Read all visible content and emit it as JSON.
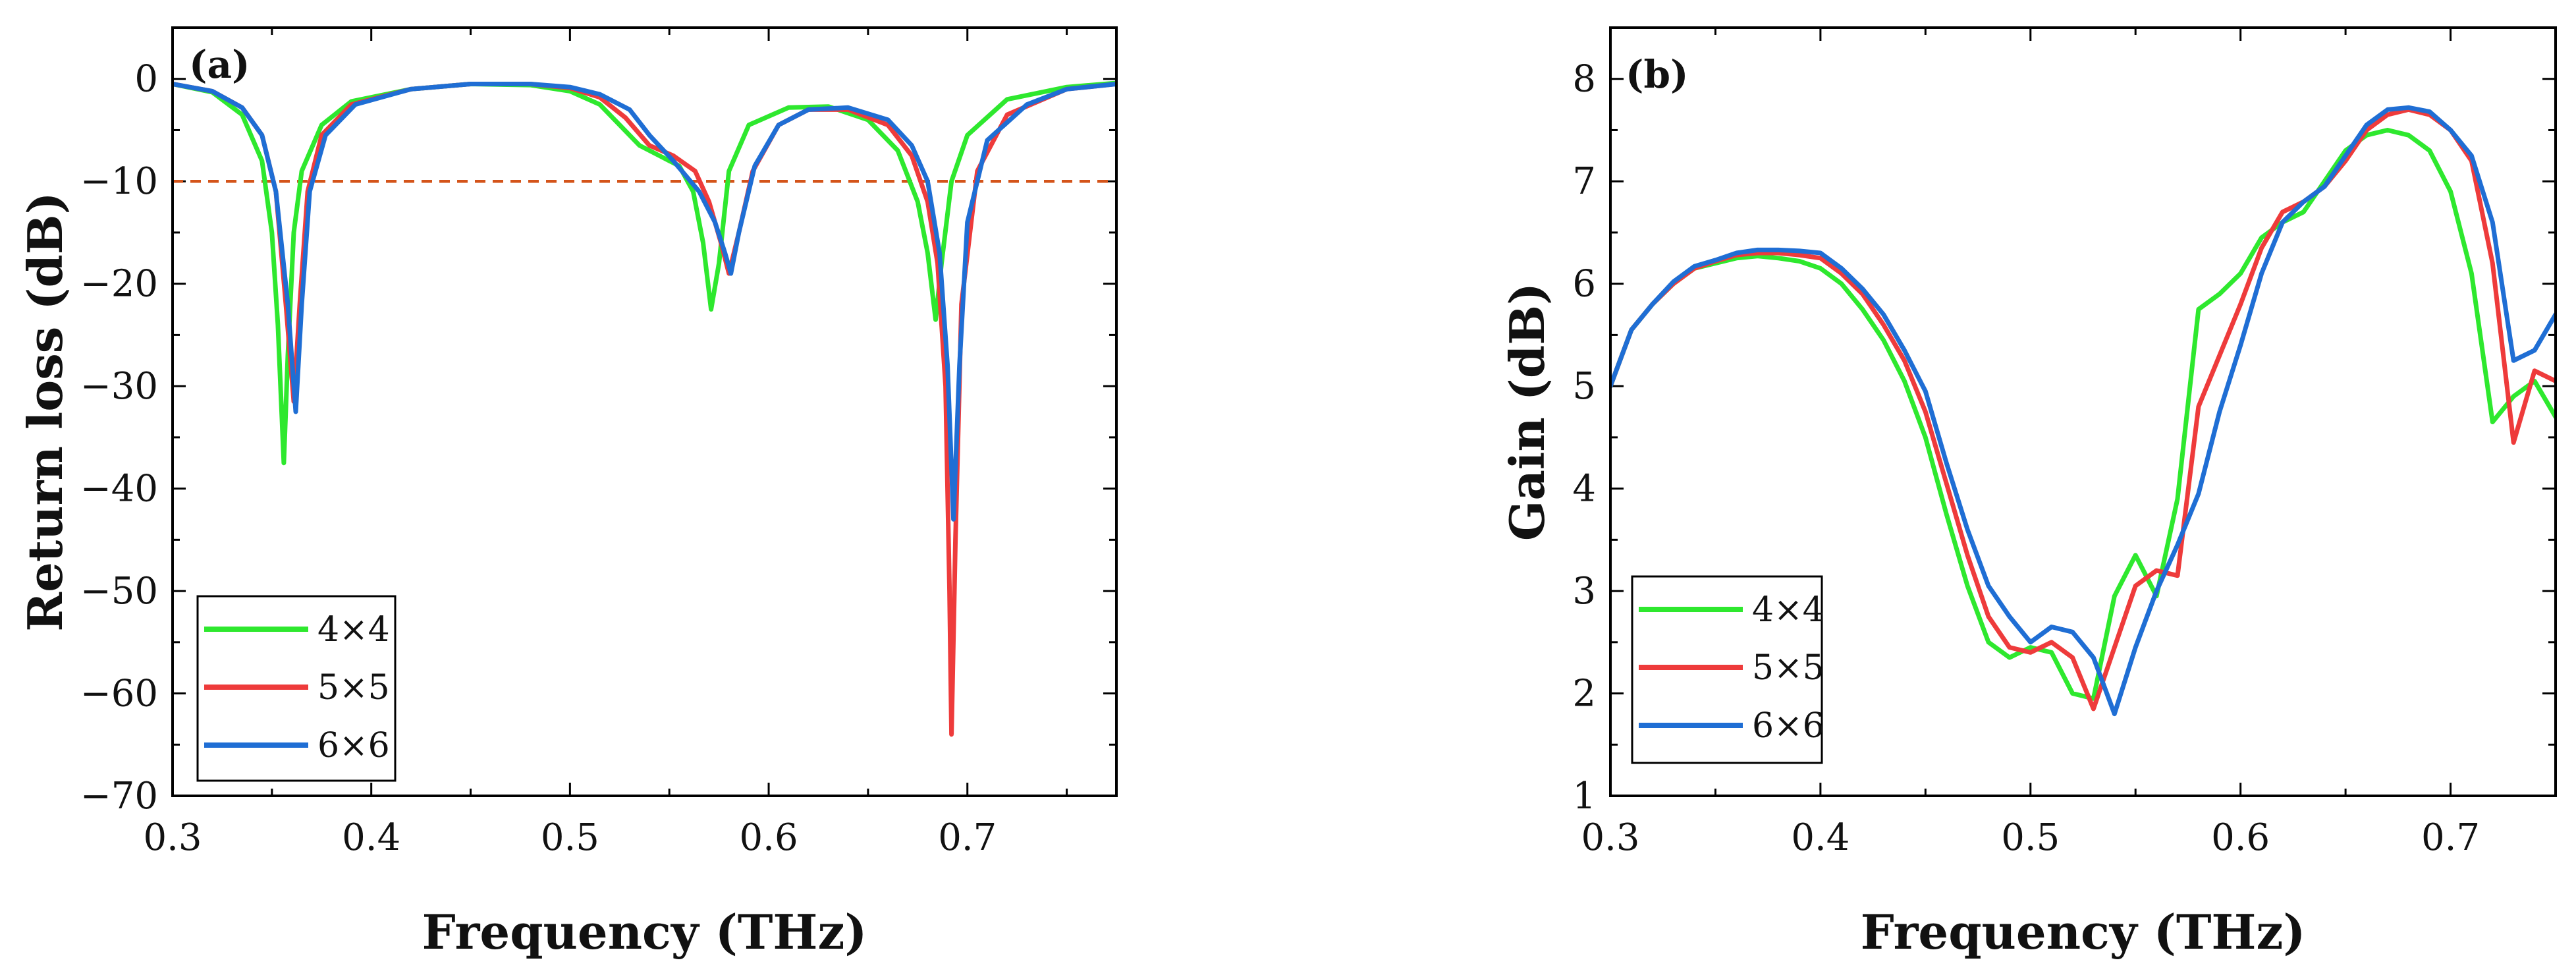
{
  "chart_data": [
    {
      "id": "a",
      "type": "line",
      "panel_label": "(a)",
      "xlabel": "Frequency (THz)",
      "ylabel": "Return loss (dB)",
      "xlim": [
        0.3,
        0.775
      ],
      "ylim": [
        -70,
        5
      ],
      "xticks": [
        0.3,
        0.4,
        0.5,
        0.6,
        0.7
      ],
      "xtick_labels": [
        "0.3",
        "0.4",
        "0.5",
        "0.6",
        "0.7"
      ],
      "yticks": [
        0,
        -10,
        -20,
        -30,
        -40,
        -50,
        -60,
        -70
      ],
      "ytick_labels": [
        "0",
        "−10",
        "−20",
        "−30",
        "−40",
        "−50",
        "−60",
        "−70"
      ],
      "legend_position": "bottom-left",
      "reference_line": {
        "y": -10,
        "style": "dashed",
        "color": "#d4541a"
      },
      "series": [
        {
          "name": "4×4",
          "color": "#2ee82e",
          "points": [
            [
              0.3,
              -0.5
            ],
            [
              0.32,
              -1.3
            ],
            [
              0.335,
              -3.5
            ],
            [
              0.345,
              -8
            ],
            [
              0.35,
              -15
            ],
            [
              0.353,
              -24
            ],
            [
              0.356,
              -37.5
            ],
            [
              0.358,
              -27
            ],
            [
              0.361,
              -15
            ],
            [
              0.365,
              -9
            ],
            [
              0.375,
              -4.5
            ],
            [
              0.39,
              -2.2
            ],
            [
              0.42,
              -1
            ],
            [
              0.45,
              -0.5
            ],
            [
              0.48,
              -0.6
            ],
            [
              0.5,
              -1.2
            ],
            [
              0.515,
              -2.5
            ],
            [
              0.525,
              -4.5
            ],
            [
              0.535,
              -6.5
            ],
            [
              0.545,
              -7.5
            ],
            [
              0.555,
              -8.5
            ],
            [
              0.562,
              -11
            ],
            [
              0.567,
              -16
            ],
            [
              0.571,
              -22.5
            ],
            [
              0.575,
              -18
            ],
            [
              0.58,
              -9
            ],
            [
              0.59,
              -4.5
            ],
            [
              0.61,
              -2.8
            ],
            [
              0.63,
              -2.7
            ],
            [
              0.65,
              -4
            ],
            [
              0.665,
              -7
            ],
            [
              0.675,
              -12
            ],
            [
              0.68,
              -17
            ],
            [
              0.684,
              -23.5
            ],
            [
              0.687,
              -18
            ],
            [
              0.692,
              -10
            ],
            [
              0.7,
              -5.5
            ],
            [
              0.72,
              -2
            ],
            [
              0.75,
              -0.8
            ],
            [
              0.775,
              -0.4
            ]
          ]
        },
        {
          "name": "5×5",
          "color": "#ee3b3b",
          "points": [
            [
              0.3,
              -0.5
            ],
            [
              0.32,
              -1.2
            ],
            [
              0.335,
              -2.8
            ],
            [
              0.345,
              -5.5
            ],
            [
              0.352,
              -11
            ],
            [
              0.357,
              -22
            ],
            [
              0.361,
              -31.5
            ],
            [
              0.364,
              -22
            ],
            [
              0.368,
              -11
            ],
            [
              0.375,
              -5.5
            ],
            [
              0.39,
              -2.5
            ],
            [
              0.42,
              -1
            ],
            [
              0.45,
              -0.5
            ],
            [
              0.48,
              -0.5
            ],
            [
              0.5,
              -0.9
            ],
            [
              0.515,
              -1.8
            ],
            [
              0.528,
              -3.8
            ],
            [
              0.54,
              -6.5
            ],
            [
              0.552,
              -7.5
            ],
            [
              0.563,
              -9
            ],
            [
              0.57,
              -12
            ],
            [
              0.576,
              -16
            ],
            [
              0.58,
              -19
            ],
            [
              0.585,
              -15
            ],
            [
              0.592,
              -9
            ],
            [
              0.605,
              -4.5
            ],
            [
              0.62,
              -3
            ],
            [
              0.64,
              -3
            ],
            [
              0.66,
              -4.5
            ],
            [
              0.672,
              -7.5
            ],
            [
              0.68,
              -12
            ],
            [
              0.685,
              -18
            ],
            [
              0.689,
              -30
            ],
            [
              0.691,
              -50
            ],
            [
              0.692,
              -64
            ],
            [
              0.694,
              -45
            ],
            [
              0.697,
              -22
            ],
            [
              0.705,
              -9
            ],
            [
              0.72,
              -3.5
            ],
            [
              0.75,
              -1
            ],
            [
              0.775,
              -0.5
            ]
          ]
        },
        {
          "name": "6×6",
          "color": "#1f6ed4",
          "points": [
            [
              0.3,
              -0.5
            ],
            [
              0.32,
              -1.2
            ],
            [
              0.335,
              -2.8
            ],
            [
              0.345,
              -5.5
            ],
            [
              0.352,
              -11
            ],
            [
              0.358,
              -22
            ],
            [
              0.362,
              -32.5
            ],
            [
              0.365,
              -22
            ],
            [
              0.369,
              -11
            ],
            [
              0.377,
              -5.5
            ],
            [
              0.392,
              -2.5
            ],
            [
              0.42,
              -1
            ],
            [
              0.45,
              -0.5
            ],
            [
              0.48,
              -0.5
            ],
            [
              0.5,
              -0.8
            ],
            [
              0.515,
              -1.5
            ],
            [
              0.53,
              -3
            ],
            [
              0.54,
              -5.5
            ],
            [
              0.552,
              -8
            ],
            [
              0.565,
              -11
            ],
            [
              0.573,
              -14
            ],
            [
              0.578,
              -17
            ],
            [
              0.581,
              -19
            ],
            [
              0.585,
              -15
            ],
            [
              0.593,
              -8.5
            ],
            [
              0.605,
              -4.5
            ],
            [
              0.62,
              -3
            ],
            [
              0.64,
              -2.8
            ],
            [
              0.66,
              -4
            ],
            [
              0.672,
              -6.5
            ],
            [
              0.68,
              -10
            ],
            [
              0.686,
              -17
            ],
            [
              0.69,
              -28
            ],
            [
              0.693,
              -43
            ],
            [
              0.696,
              -28
            ],
            [
              0.7,
              -14
            ],
            [
              0.71,
              -6
            ],
            [
              0.73,
              -2.5
            ],
            [
              0.75,
              -1
            ],
            [
              0.775,
              -0.5
            ]
          ]
        }
      ]
    },
    {
      "id": "b",
      "type": "line",
      "panel_label": "(b)",
      "xlabel": "Frequency (THz)",
      "ylabel": "Gain (dB)",
      "xlim": [
        0.3,
        0.75
      ],
      "ylim": [
        1,
        8.5
      ],
      "xticks": [
        0.3,
        0.4,
        0.5,
        0.6,
        0.7
      ],
      "xtick_labels": [
        "0.3",
        "0.4",
        "0.5",
        "0.6",
        "0.7"
      ],
      "yticks": [
        1,
        2,
        3,
        4,
        5,
        6,
        7,
        8
      ],
      "ytick_labels": [
        "1",
        "2",
        "3",
        "4",
        "5",
        "6",
        "7",
        "8"
      ],
      "legend_position": "bottom-left",
      "series": [
        {
          "name": "4×4",
          "color": "#2ee82e",
          "x": [
            0.3,
            0.31,
            0.32,
            0.33,
            0.34,
            0.35,
            0.36,
            0.37,
            0.38,
            0.39,
            0.4,
            0.41,
            0.42,
            0.43,
            0.44,
            0.45,
            0.46,
            0.47,
            0.48,
            0.49,
            0.5,
            0.51,
            0.52,
            0.53,
            0.54,
            0.55,
            0.56,
            0.57,
            0.58,
            0.59,
            0.6,
            0.61,
            0.62,
            0.63,
            0.64,
            0.65,
            0.66,
            0.67,
            0.68,
            0.69,
            0.7,
            0.71,
            0.72,
            0.73,
            0.74,
            0.75
          ],
          "values": [
            5.0,
            5.55,
            5.8,
            6.0,
            6.15,
            6.2,
            6.25,
            6.27,
            6.25,
            6.22,
            6.15,
            6.0,
            5.75,
            5.45,
            5.05,
            4.5,
            3.75,
            3.05,
            2.5,
            2.35,
            2.45,
            2.4,
            2.0,
            1.95,
            2.95,
            3.35,
            2.95,
            3.9,
            5.75,
            5.9,
            6.1,
            6.45,
            6.6,
            6.7,
            7.0,
            7.3,
            7.45,
            7.5,
            7.45,
            7.3,
            6.9,
            6.1,
            4.65,
            4.9,
            5.05,
            4.7
          ]
        },
        {
          "name": "5×5",
          "color": "#ee3b3b",
          "x": [
            0.3,
            0.31,
            0.32,
            0.33,
            0.34,
            0.35,
            0.36,
            0.37,
            0.38,
            0.39,
            0.4,
            0.41,
            0.42,
            0.43,
            0.44,
            0.45,
            0.46,
            0.47,
            0.48,
            0.49,
            0.5,
            0.51,
            0.52,
            0.53,
            0.54,
            0.55,
            0.56,
            0.57,
            0.58,
            0.59,
            0.6,
            0.61,
            0.62,
            0.63,
            0.64,
            0.65,
            0.66,
            0.67,
            0.68,
            0.69,
            0.7,
            0.71,
            0.72,
            0.73,
            0.74,
            0.75
          ],
          "values": [
            5.0,
            5.55,
            5.8,
            6.0,
            6.15,
            6.22,
            6.28,
            6.3,
            6.3,
            6.28,
            6.25,
            6.1,
            5.9,
            5.6,
            5.25,
            4.75,
            4.05,
            3.35,
            2.75,
            2.45,
            2.4,
            2.5,
            2.35,
            1.85,
            2.45,
            3.05,
            3.2,
            3.15,
            4.8,
            5.3,
            5.8,
            6.35,
            6.7,
            6.8,
            6.95,
            7.2,
            7.5,
            7.65,
            7.7,
            7.65,
            7.5,
            7.2,
            6.2,
            4.45,
            5.15,
            5.05
          ]
        },
        {
          "name": "6×6",
          "color": "#1f6ed4",
          "x": [
            0.3,
            0.31,
            0.32,
            0.33,
            0.34,
            0.35,
            0.36,
            0.37,
            0.38,
            0.39,
            0.4,
            0.41,
            0.42,
            0.43,
            0.44,
            0.45,
            0.46,
            0.47,
            0.48,
            0.49,
            0.5,
            0.51,
            0.52,
            0.53,
            0.54,
            0.55,
            0.56,
            0.57,
            0.58,
            0.59,
            0.6,
            0.61,
            0.62,
            0.63,
            0.64,
            0.65,
            0.66,
            0.67,
            0.68,
            0.69,
            0.7,
            0.71,
            0.72,
            0.73,
            0.74,
            0.75
          ],
          "values": [
            5.0,
            5.55,
            5.8,
            6.02,
            6.17,
            6.23,
            6.3,
            6.33,
            6.33,
            6.32,
            6.3,
            6.15,
            5.95,
            5.7,
            5.35,
            4.95,
            4.25,
            3.6,
            3.05,
            2.75,
            2.5,
            2.65,
            2.6,
            2.35,
            1.8,
            2.45,
            3.0,
            3.45,
            3.95,
            4.75,
            5.4,
            6.1,
            6.6,
            6.8,
            6.95,
            7.25,
            7.55,
            7.7,
            7.72,
            7.68,
            7.5,
            7.25,
            6.6,
            5.25,
            5.35,
            5.7
          ]
        }
      ]
    }
  ]
}
